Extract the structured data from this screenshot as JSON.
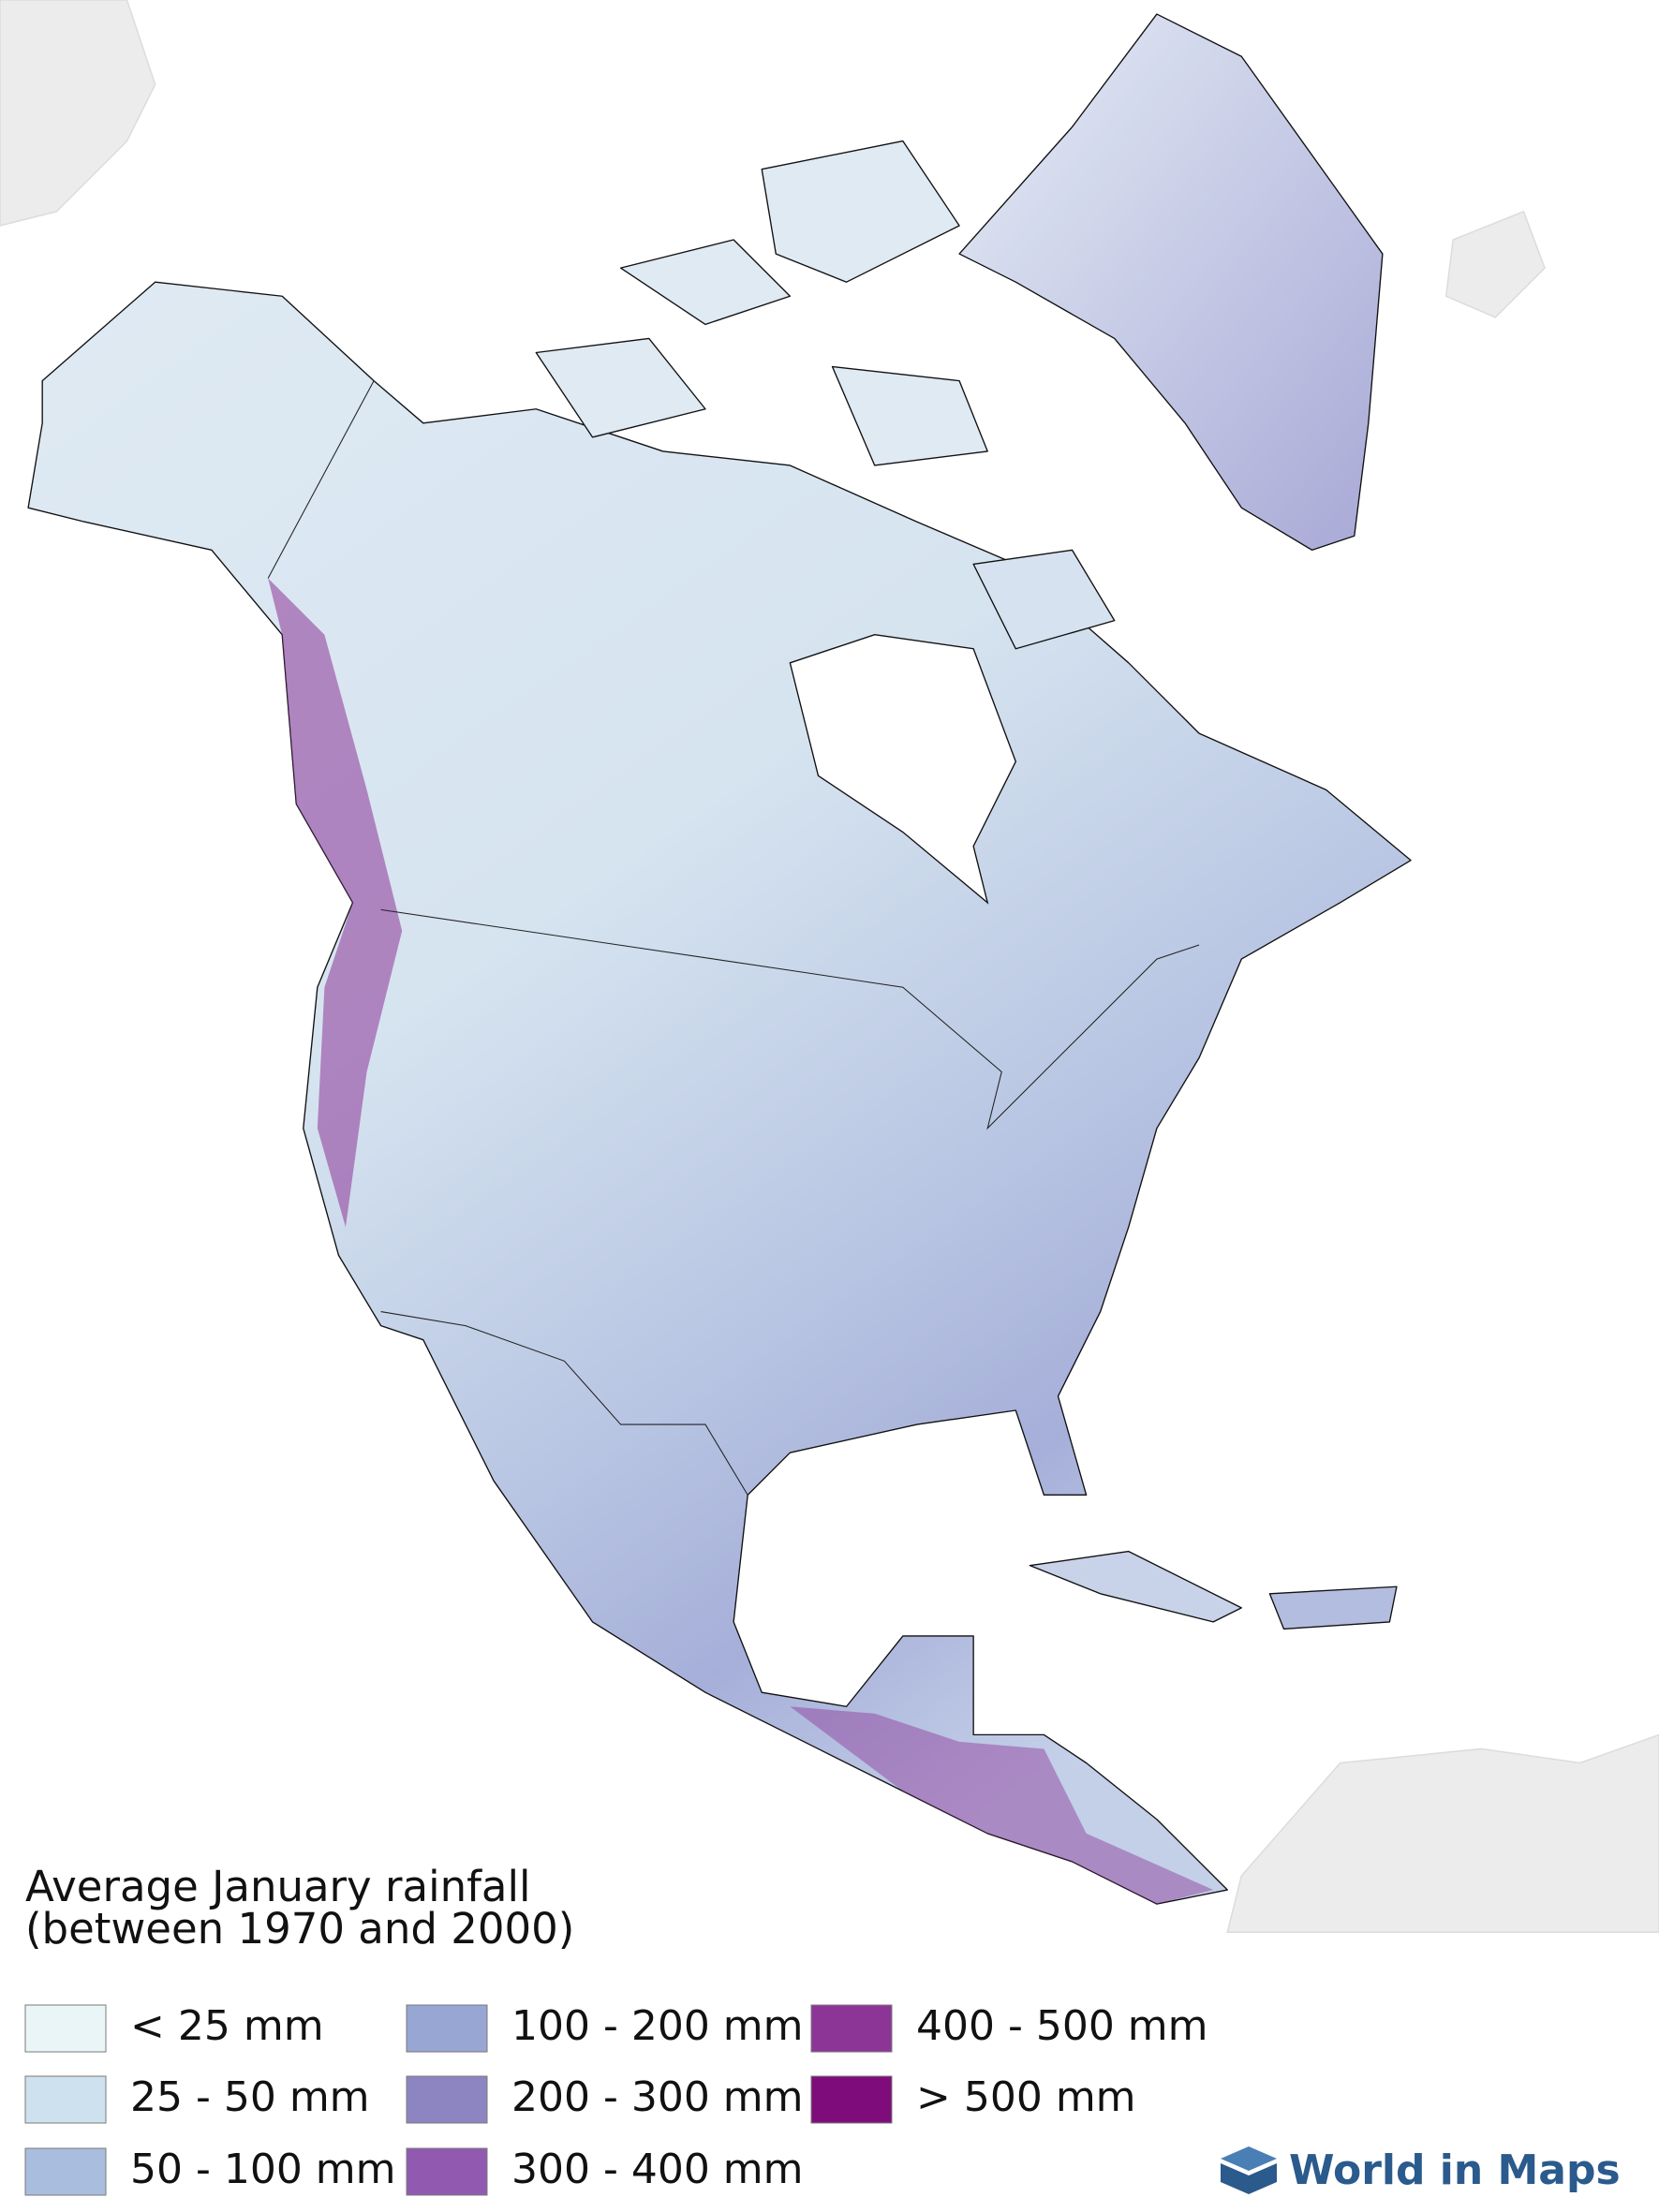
{
  "title": {
    "line1": "Average January rainfall",
    "line2": "(between 1970 and 2000)"
  },
  "legend": [
    {
      "label": "< 25 mm",
      "color": "#eaf5f8"
    },
    {
      "label": "25 - 50 mm",
      "color": "#cde1ee"
    },
    {
      "label": "50 - 100 mm",
      "color": "#a9bedf"
    },
    {
      "label": "100 - 200 mm",
      "color": "#98a6d3"
    },
    {
      "label": "200 - 300 mm",
      "color": "#8c85c1"
    },
    {
      "label": "300 - 400 mm",
      "color": "#9159b0"
    },
    {
      "label": "400 - 500 mm",
      "color": "#8c3597"
    },
    {
      "label": "> 500 mm",
      "color": "#7e0d7b"
    }
  ],
  "brand": "World in Maps"
}
